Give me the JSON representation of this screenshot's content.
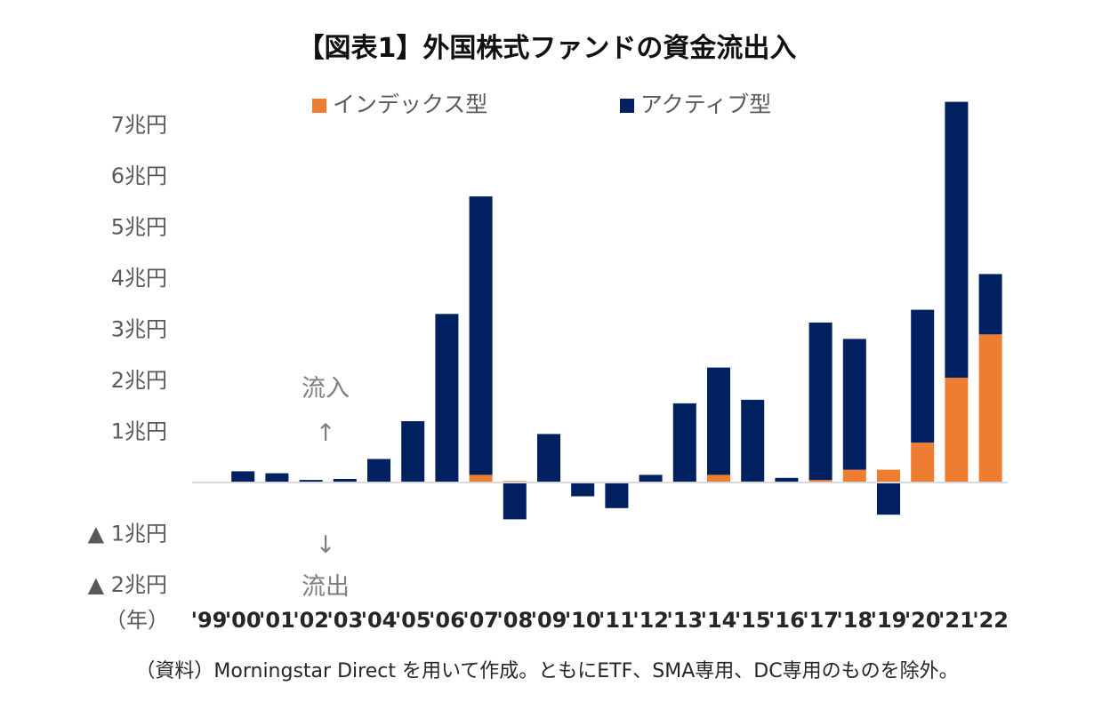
{
  "chart_data": {
    "type": "bar",
    "stacked": true,
    "title": "【図表1】外国株式ファンドの資金流出入",
    "source": "（資料）Morningstar Direct を用いて作成。ともにETF、SMA専用、DC専用のものを除外。",
    "x_unit_label": "（年）",
    "categories": [
      "'99",
      "'00",
      "'01",
      "'02",
      "'03",
      "'04",
      "'05",
      "'06",
      "'07",
      "'08",
      "'09",
      "'10",
      "'11",
      "'12",
      "'13",
      "'14",
      "'15",
      "'16",
      "'17",
      "'18",
      "'19",
      "'20",
      "'21",
      "'22"
    ],
    "series": [
      {
        "name": "インデックス型",
        "color": "#ED7D31",
        "values": [
          0,
          0,
          0,
          0,
          0,
          0,
          0,
          0,
          0.15,
          0.03,
          0,
          0,
          0,
          0,
          0,
          0.15,
          0.02,
          0.01,
          0.05,
          0.25,
          0.25,
          0.78,
          2.05,
          2.9
        ]
      },
      {
        "name": "アクティブ型",
        "color": "#002060",
        "values": [
          0,
          0.22,
          0.18,
          0.05,
          0.07,
          0.46,
          1.2,
          3.3,
          5.45,
          -0.72,
          0.95,
          -0.27,
          -0.5,
          0.15,
          1.55,
          2.1,
          1.6,
          0.08,
          3.08,
          2.56,
          -0.63,
          2.6,
          5.4,
          1.18
        ]
      }
    ],
    "ylim": [
      -2,
      7.5
    ],
    "yticks": [
      {
        "value": 7,
        "label": "7兆円"
      },
      {
        "value": 6,
        "label": "6兆円"
      },
      {
        "value": 5,
        "label": "5兆円"
      },
      {
        "value": 4,
        "label": "4兆円"
      },
      {
        "value": 3,
        "label": "3兆円"
      },
      {
        "value": 2,
        "label": "2兆円"
      },
      {
        "value": 1,
        "label": "1兆円"
      },
      {
        "value": -1,
        "label": "▲ 1兆円"
      },
      {
        "value": -2,
        "label": "▲ 2兆円"
      }
    ],
    "legend_position": "top",
    "annotations": {
      "inflow_label": "流入",
      "inflow_arrow": "↑",
      "outflow_arrow": "↓",
      "outflow_label": "流出"
    }
  }
}
